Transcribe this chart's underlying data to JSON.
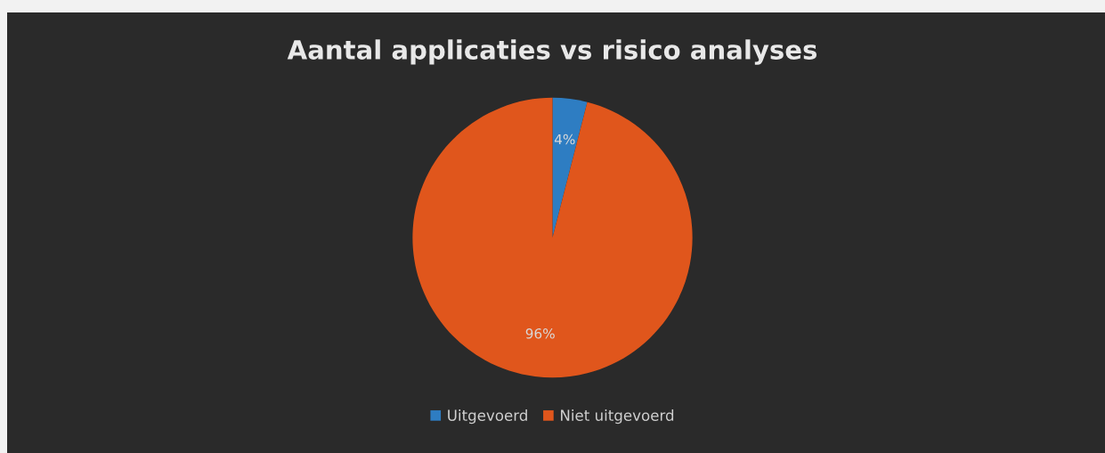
{
  "chart_data": {
    "type": "pie",
    "title": "Aantal applicaties vs risico analyses",
    "categories": [
      "Uitgevoerd",
      "Niet uitgevoerd"
    ],
    "values": [
      4,
      96
    ],
    "colors": [
      "#2e7dc2",
      "#e0561c"
    ],
    "value_labels": [
      "4%",
      "96%"
    ],
    "legend": "bottom"
  }
}
